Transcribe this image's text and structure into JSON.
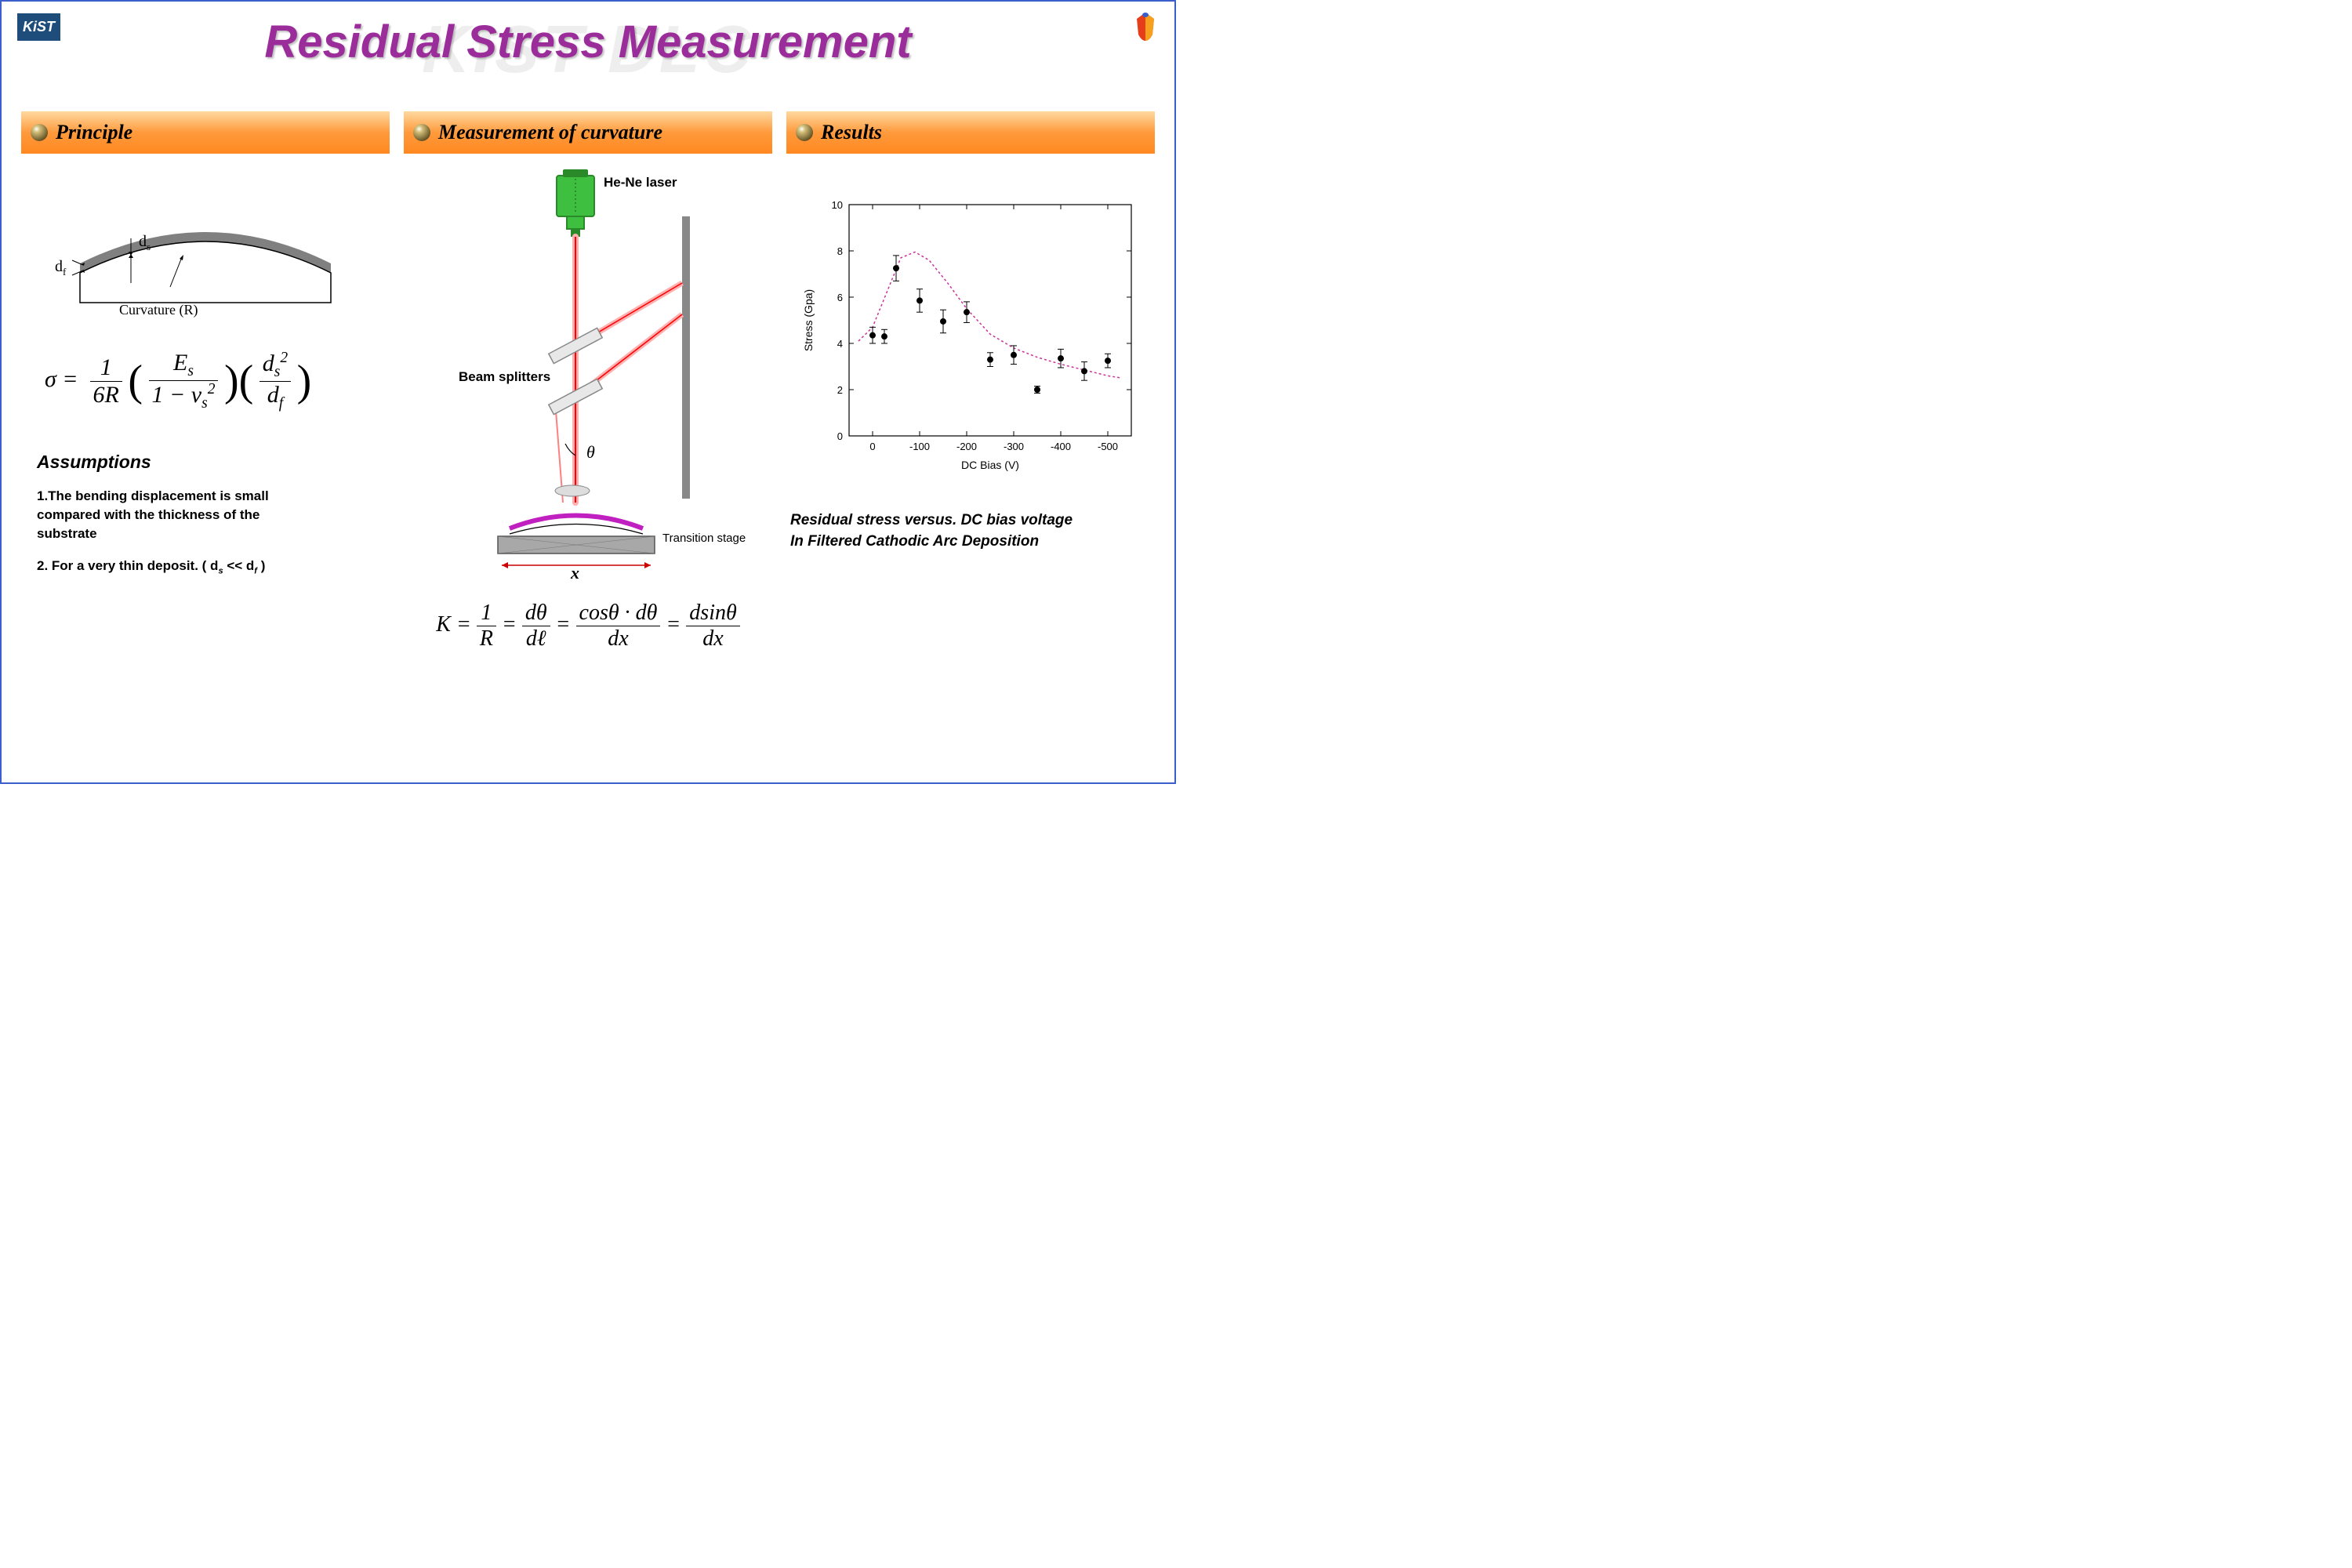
{
  "logo_text": "KiST",
  "watermark": "KIST DLC",
  "title": "Residual Stress Measurement",
  "sections": {
    "principle": {
      "label": "Principle"
    },
    "measurement": {
      "label": "Measurement of curvature"
    },
    "results": {
      "label": "Results"
    }
  },
  "curvature_diagram": {
    "label_df": "d",
    "label_df_sub": "f",
    "label_ds": "d",
    "label_ds_sub": "s",
    "caption": "Curvature (R)",
    "film_color": "#808080",
    "substrate_stroke": "#000000"
  },
  "stoney": {
    "lhs": "σ",
    "eq": "=",
    "frac1_num": "1",
    "frac1_den_a": "6",
    "frac1_den_b": "R",
    "frac2_num_a": "E",
    "frac2_num_sub": "s",
    "frac2_den_a": "1 − ν",
    "frac2_den_sub": "s",
    "frac2_den_sup": "2",
    "frac3_num_a": "d",
    "frac3_num_sub": "s",
    "frac3_num_sup": "2",
    "frac3_den_a": "d",
    "frac3_den_sub": "f"
  },
  "assumptions": {
    "title": "Assumptions",
    "items": [
      "1.The bending displacement is small compared with the thickness of the substrate",
      "2. For a very thin deposit. ( dₛ << d_f )"
    ],
    "item2_prefix": "2. For a very thin deposit. ( d",
    "item2_mid": " << d",
    "item2_suffix": " )"
  },
  "setup": {
    "laser_label": "He-Ne laser",
    "splitters_label": "Beam splitters",
    "theta_label": "θ",
    "x_label": "x",
    "stage_label": "Transition stage",
    "laser_color": "#3fbf3f",
    "laser_dark": "#2a8a2a",
    "beam_color": "#ff0000",
    "beam_glow": "#ffb0b0",
    "splitter_fill": "#e8e8e8",
    "splitter_stroke": "#888888",
    "wall_color": "#888888",
    "sample_color": "#c020c0",
    "stage_fill": "#909090",
    "stage_stroke": "#555555"
  },
  "k_eq": {
    "lhs": "K",
    "r": "R",
    "dtheta": "dθ",
    "dl": "dℓ",
    "costheta_dtheta": "cosθ · dθ",
    "dx": "dx",
    "dsintheta": "dsinθ"
  },
  "chart": {
    "ylabel": "Stress (Gpa)",
    "xlabel": "DC Bias (V)",
    "ylim": [
      0,
      10
    ],
    "ytick_step": 2,
    "yticks": [
      0,
      2,
      4,
      6,
      8,
      10
    ],
    "xlim": [
      50,
      -550
    ],
    "xticks": [
      0,
      -100,
      -200,
      -300,
      -400,
      -500
    ],
    "background": "#ffffff",
    "axis_color": "#000000",
    "marker_color": "#000000",
    "errorbar_color": "#000000",
    "fit_color": "#cc3399",
    "fit_dash": "3,3",
    "label_fontsize": 14,
    "tick_fontsize": 13,
    "marker_size": 4,
    "points": [
      {
        "x": 0,
        "y": 4.35,
        "err": 0.35
      },
      {
        "x": -25,
        "y": 4.3,
        "err": 0.3
      },
      {
        "x": -50,
        "y": 7.25,
        "err": 0.55
      },
      {
        "x": -100,
        "y": 5.85,
        "err": 0.5
      },
      {
        "x": -150,
        "y": 4.95,
        "err": 0.5
      },
      {
        "x": -200,
        "y": 5.35,
        "err": 0.45
      },
      {
        "x": -250,
        "y": 3.3,
        "err": 0.3
      },
      {
        "x": -300,
        "y": 3.5,
        "err": 0.4
      },
      {
        "x": -350,
        "y": 2.0,
        "err": 0.15
      },
      {
        "x": -400,
        "y": 3.35,
        "err": 0.4
      },
      {
        "x": -450,
        "y": 2.8,
        "err": 0.4
      },
      {
        "x": -500,
        "y": 3.25,
        "err": 0.3
      }
    ],
    "fit_curve": [
      {
        "x": 30,
        "y": 4.1
      },
      {
        "x": 0,
        "y": 4.7
      },
      {
        "x": -30,
        "y": 6.2
      },
      {
        "x": -60,
        "y": 7.7
      },
      {
        "x": -90,
        "y": 7.95
      },
      {
        "x": -120,
        "y": 7.6
      },
      {
        "x": -160,
        "y": 6.6
      },
      {
        "x": -200,
        "y": 5.5
      },
      {
        "x": -250,
        "y": 4.4
      },
      {
        "x": -300,
        "y": 3.8
      },
      {
        "x": -350,
        "y": 3.4
      },
      {
        "x": -400,
        "y": 3.1
      },
      {
        "x": -450,
        "y": 2.85
      },
      {
        "x": -500,
        "y": 2.6
      },
      {
        "x": -530,
        "y": 2.5
      }
    ]
  },
  "chart_caption_line1": "Residual stress versus. DC bias voltage",
  "chart_caption_line2": "In Filtered Cathodic Arc Deposition"
}
